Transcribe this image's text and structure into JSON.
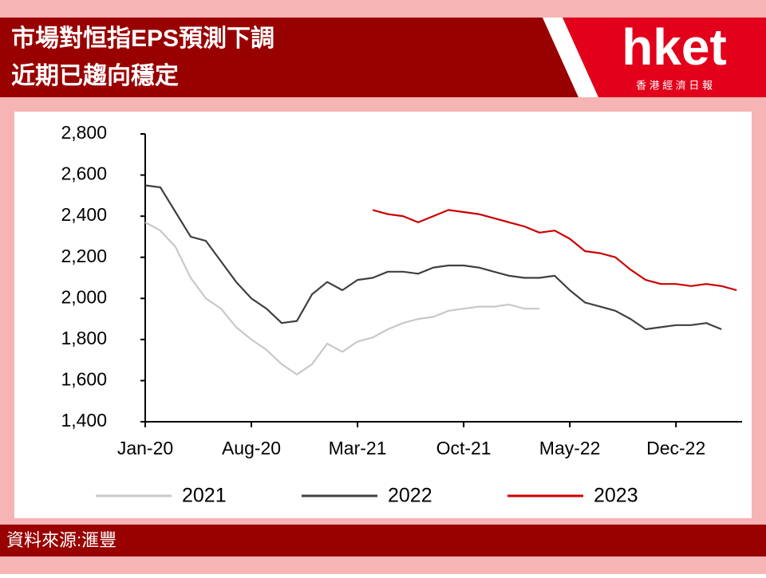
{
  "header": {
    "title": [
      "市場對恒指EPS預測下調",
      "近期已趨向穩定"
    ],
    "logo": "hket",
    "logo_subtitle": "香 港 經 濟 日 報"
  },
  "source": "資料來源:滙豐",
  "chart_data": {
    "type": "line",
    "x": [
      0,
      1,
      2,
      3,
      4,
      5,
      6,
      7,
      8,
      9,
      10,
      11,
      12,
      13,
      14,
      15,
      16,
      17,
      18,
      19,
      20,
      21,
      22,
      23,
      24,
      25,
      26,
      27,
      28,
      29,
      30,
      31,
      32,
      33,
      34,
      35,
      36,
      37,
      38,
      39
    ],
    "xlim": [
      0,
      39.2
    ],
    "xticks": [
      {
        "value": 0,
        "label": "Jan-20"
      },
      {
        "value": 7,
        "label": "Aug-20"
      },
      {
        "value": 14,
        "label": "Mar-21"
      },
      {
        "value": 21,
        "label": "Oct-21"
      },
      {
        "value": 28,
        "label": "May-22"
      },
      {
        "value": 35,
        "label": "Dec-22"
      }
    ],
    "ylim": [
      1400,
      2800
    ],
    "yticks": [
      {
        "value": 1400,
        "label": "1,400"
      },
      {
        "value": 1600,
        "label": "1,600"
      },
      {
        "value": 1800,
        "label": "1,800"
      },
      {
        "value": 2000,
        "label": "2,000"
      },
      {
        "value": 2200,
        "label": "2,200"
      },
      {
        "value": 2400,
        "label": "2,400"
      },
      {
        "value": 2600,
        "label": "2,600"
      },
      {
        "value": 2800,
        "label": "2,800"
      }
    ],
    "grid": false,
    "legend": "bottom",
    "series": [
      {
        "name": "2021",
        "color": "#c8c8c8",
        "values": [
          2370,
          2330,
          2250,
          2100,
          2000,
          1950,
          1860,
          1800,
          1750,
          1680,
          1630,
          1680,
          1780,
          1740,
          1790,
          1810,
          1850,
          1880,
          1900,
          1910,
          1940,
          1950,
          1960,
          1960,
          1970,
          1950,
          1950,
          null,
          null,
          null,
          null,
          null,
          null,
          null,
          null,
          null,
          null,
          null,
          null,
          null
        ]
      },
      {
        "name": "2022",
        "color": "#404040",
        "values": [
          2550,
          2540,
          2420,
          2300,
          2280,
          2180,
          2080,
          2000,
          1950,
          1880,
          1890,
          2020,
          2080,
          2040,
          2090,
          2100,
          2130,
          2130,
          2120,
          2150,
          2160,
          2160,
          2150,
          2130,
          2110,
          2100,
          2100,
          2110,
          2040,
          1980,
          1960,
          1940,
          1900,
          1850,
          1860,
          1870,
          1870,
          1880,
          1850,
          null
        ]
      },
      {
        "name": "2023",
        "color": "#cc0000",
        "values": [
          null,
          null,
          null,
          null,
          null,
          null,
          null,
          null,
          null,
          null,
          null,
          null,
          null,
          null,
          null,
          2430,
          2410,
          2400,
          2370,
          2400,
          2430,
          2420,
          2410,
          2390,
          2370,
          2350,
          2320,
          2330,
          2290,
          2230,
          2220,
          2200,
          2140,
          2090,
          2070,
          2070,
          2060,
          2070,
          2060,
          2040
        ]
      }
    ]
  }
}
